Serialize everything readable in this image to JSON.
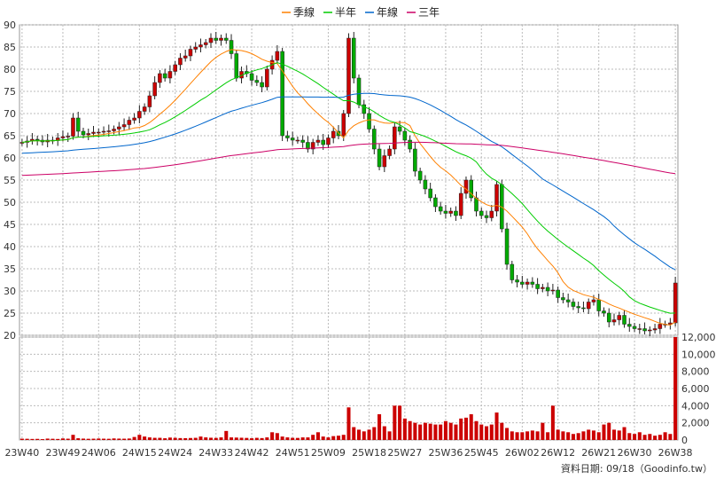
{
  "chart_data": {
    "type": "candlestick",
    "title": "",
    "legend": [
      {
        "name": "季線",
        "color": "#ff8000"
      },
      {
        "name": "半年",
        "color": "#00cc00"
      },
      {
        "name": "年線",
        "color": "#0066cc"
      },
      {
        "name": "三年",
        "color": "#cc0066"
      }
    ],
    "legend_position": "top-center",
    "up_color": "#cc0000",
    "down_color": "#00aa00",
    "volume_color": "#cc0000",
    "price_axis": {
      "range": [
        20,
        90
      ],
      "ticks": [
        "90",
        "85",
        "80",
        "75",
        "70",
        "65",
        "60",
        "55",
        "50",
        "45",
        "40",
        "35",
        "30",
        "25",
        "20"
      ]
    },
    "volume_axis": {
      "range": [
        0,
        12000
      ],
      "ticks": [
        "12,000",
        "10,000",
        "8,000",
        "6,000",
        "4,000",
        "2,000",
        "0"
      ]
    },
    "x_tick_labels": [
      "23W40",
      "23W49",
      "24W06",
      "24W15",
      "24W24",
      "24W33",
      "24W42",
      "24W51",
      "25W09",
      "25W18",
      "25W27",
      "25W36",
      "25W45",
      "26W02",
      "26W12",
      "26W21",
      "26W30",
      "26W38"
    ],
    "grid": true,
    "source_label": "資料日期: 09/18（Goodinfo.tw）",
    "weekly_close": [
      63.5,
      63.8,
      64.2,
      64.0,
      63.6,
      64.0,
      63.9,
      64.5,
      64.8,
      64.9,
      69.0,
      66.0,
      65.2,
      65.5,
      65.8,
      65.8,
      66.0,
      66.1,
      66.5,
      67.0,
      67.5,
      68.5,
      69.0,
      70.5,
      71.5,
      74.0,
      77.0,
      79.0,
      78.0,
      79.5,
      81.0,
      82.5,
      83.0,
      84.5,
      85.0,
      85.5,
      86.0,
      87.0,
      86.5,
      87.0,
      86.5,
      83.5,
      78.0,
      79.5,
      79.0,
      77.5,
      77.0,
      76.0,
      80.0,
      82.0,
      84.0,
      65.0,
      64.5,
      64.0,
      64.0,
      63.5,
      62.0,
      63.5,
      64.0,
      63.0,
      64.5,
      66.0,
      65.0,
      70.0,
      87.0,
      78.0,
      72.0,
      70.0,
      66.5,
      62.0,
      58.0,
      60.5,
      62.0,
      67.0,
      66.0,
      64.0,
      62.0,
      57.0,
      55.0,
      53.0,
      51.0,
      49.0,
      48.0,
      47.5,
      48.0,
      47.0,
      52.0,
      55.0,
      51.0,
      48.0,
      47.0,
      46.5,
      48.0,
      54.0,
      44.0,
      36.0,
      32.5,
      32.0,
      31.5,
      32.0,
      31.5,
      30.5,
      30.8,
      30.0,
      30.2,
      28.5,
      28.0,
      27.5,
      26.5,
      26.2,
      26.0,
      27.5,
      28.0,
      25.5,
      25.0,
      23.0,
      23.5,
      24.5,
      22.5,
      22.0,
      21.5,
      21.5,
      21.0,
      21.2,
      21.5,
      22.5,
      22.5,
      22.8,
      31.8
    ],
    "weekly_volume": [
      150,
      140,
      120,
      130,
      100,
      160,
      140,
      120,
      180,
      150,
      600,
      200,
      160,
      140,
      150,
      170,
      150,
      140,
      180,
      160,
      150,
      170,
      350,
      600,
      400,
      300,
      250,
      250,
      200,
      280,
      250,
      220,
      210,
      230,
      250,
      400,
      300,
      260,
      240,
      300,
      1050,
      300,
      280,
      260,
      240,
      200,
      250,
      220,
      300,
      900,
      800,
      400,
      300,
      250,
      240,
      300,
      300,
      600,
      900,
      400,
      300,
      450,
      500,
      600,
      3800,
      1500,
      1200,
      1000,
      1200,
      1500,
      3000,
      1600,
      1000,
      4000,
      4000,
      2500,
      2200,
      2000,
      1800,
      2000,
      1900,
      1800,
      1800,
      2200,
      2000,
      1800,
      2500,
      2600,
      3000,
      2200,
      1800,
      1600,
      1800,
      3200,
      2000,
      1400,
      1000,
      900,
      900,
      1000,
      1100,
      1000,
      2000,
      900,
      4000,
      1200,
      1000,
      900,
      700,
      800,
      1000,
      1200,
      1100,
      900,
      1800,
      2000,
      1200,
      1100,
      1500,
      800,
      700,
      900,
      600,
      700,
      500,
      600,
      900,
      700,
      12000
    ]
  }
}
